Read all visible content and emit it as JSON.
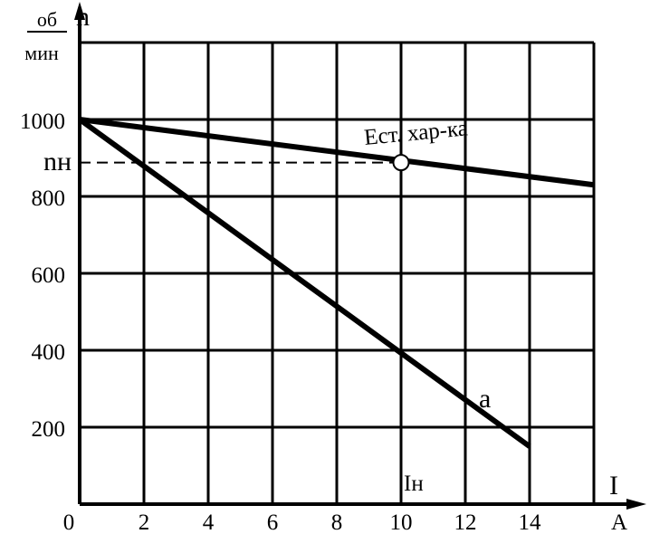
{
  "chart_data": {
    "type": "line",
    "y_axis": {
      "symbol": "n",
      "unit_numerator": "об",
      "unit_denominator": "мин",
      "ticks": [
        "200",
        "400",
        "600",
        "800",
        "1000"
      ]
    },
    "x_axis": {
      "symbol": "I",
      "unit": "A",
      "ticks": [
        "0",
        "2",
        "4",
        "6",
        "8",
        "10",
        "12",
        "14"
      ]
    },
    "xlim": [
      0,
      16
    ],
    "ylim": [
      0,
      1200
    ],
    "grid": true,
    "series": [
      {
        "name": "Ест. хар-ка",
        "points": [
          [
            0,
            1000
          ],
          [
            16,
            830
          ]
        ]
      },
      {
        "name": "а",
        "points": [
          [
            0,
            1000
          ],
          [
            14,
            150
          ]
        ]
      }
    ],
    "rated": {
      "current_label": "Iн",
      "speed_label": "nн",
      "current": 10,
      "speed": 888
    }
  }
}
